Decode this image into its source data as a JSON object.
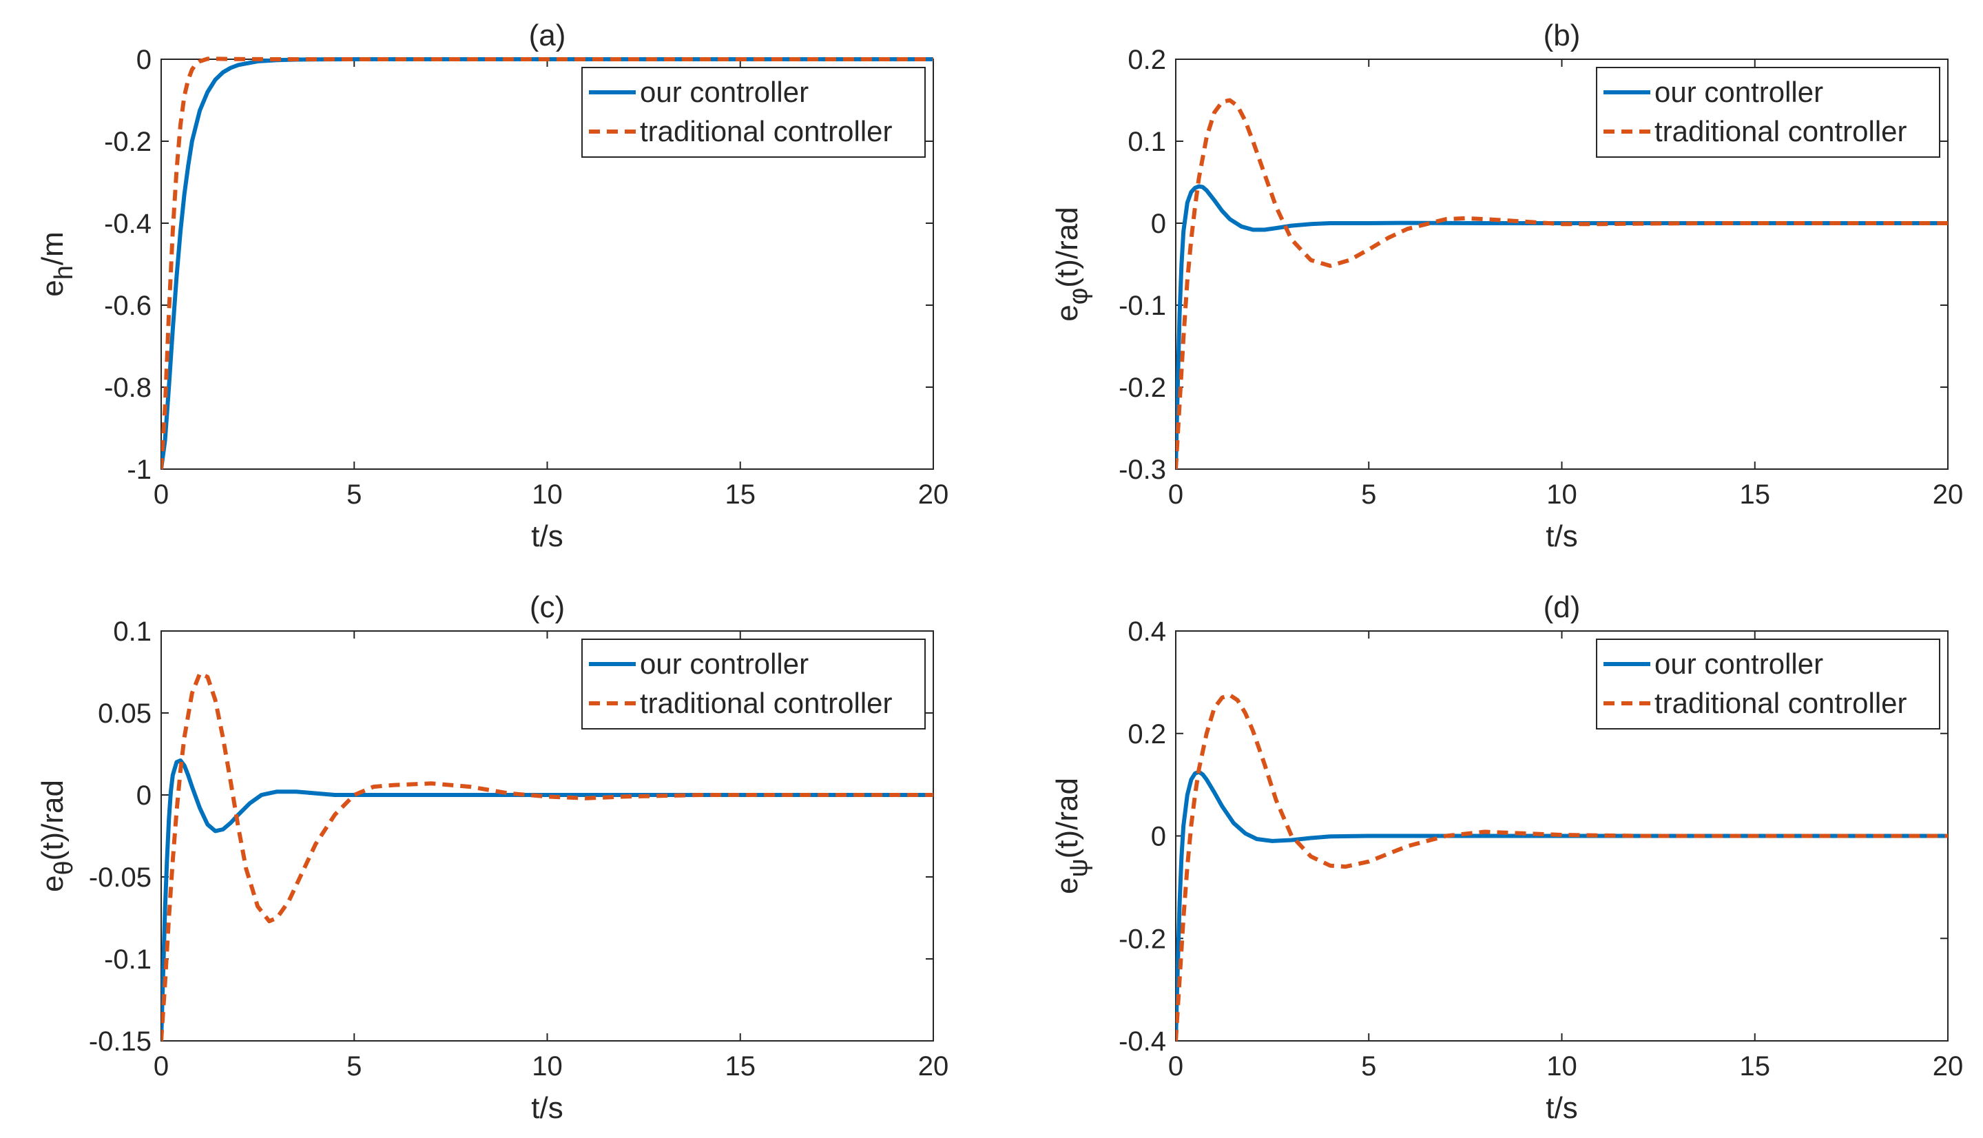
{
  "colors": {
    "ours": "#0072BD",
    "traditional": "#D95319",
    "axis": "#262626"
  },
  "chart_data": [
    {
      "type": "line",
      "title": "(a)",
      "xlabel": "t/s",
      "ylabel": {
        "base": "e",
        "sub": "h",
        "suffix": "/m"
      },
      "xlim": [
        0,
        20
      ],
      "ylim": [
        -1,
        0
      ],
      "xticks": [
        0,
        5,
        10,
        15,
        20
      ],
      "yticks": [
        -1,
        -0.8,
        -0.6,
        -0.4,
        -0.2,
        0
      ],
      "ytick_labels": [
        "-1",
        "-0.8",
        "-0.6",
        "-0.4",
        "-0.2",
        "0"
      ],
      "legend": [
        "our controller",
        "traditional controller"
      ],
      "legend_position": "top-right",
      "series": [
        {
          "name": "our controller",
          "style": "solid",
          "x": [
            0,
            0.1,
            0.2,
            0.3,
            0.4,
            0.5,
            0.6,
            0.7,
            0.8,
            1.0,
            1.2,
            1.4,
            1.6,
            1.8,
            2.0,
            2.5,
            3.0,
            3.5,
            4.0,
            5.0,
            6.0,
            20
          ],
          "y": [
            -1,
            -0.93,
            -0.8,
            -0.66,
            -0.53,
            -0.42,
            -0.33,
            -0.26,
            -0.2,
            -0.125,
            -0.08,
            -0.05,
            -0.032,
            -0.021,
            -0.014,
            -0.005,
            -0.002,
            -0.0008,
            -0.0003,
            0,
            0,
            0
          ]
        },
        {
          "name": "traditional controller",
          "style": "dashed",
          "x": [
            0,
            0.1,
            0.2,
            0.3,
            0.4,
            0.5,
            0.6,
            0.7,
            0.8,
            0.9,
            1.0,
            1.2,
            1.5,
            2.0,
            3.0,
            20
          ],
          "y": [
            -1,
            -0.85,
            -0.62,
            -0.42,
            -0.27,
            -0.16,
            -0.09,
            -0.05,
            -0.025,
            -0.012,
            -0.005,
            0.001,
            0.001,
            0.0003,
            0,
            0
          ]
        }
      ]
    },
    {
      "type": "line",
      "title": "(b)",
      "xlabel": "t/s",
      "ylabel": {
        "base": "e",
        "sub": "φ",
        "suffix": "(t)/rad"
      },
      "xlim": [
        0,
        20
      ],
      "ylim": [
        -0.3,
        0.2
      ],
      "xticks": [
        0,
        5,
        10,
        15,
        20
      ],
      "yticks": [
        -0.3,
        -0.2,
        -0.1,
        0,
        0.1,
        0.2
      ],
      "ytick_labels": [
        "-0.3",
        "-0.2",
        "-0.1",
        "0",
        "0.1",
        "0.2"
      ],
      "legend": [
        "our controller",
        "traditional controller"
      ],
      "legend_position": "top-right",
      "series": [
        {
          "name": "our controller",
          "style": "solid",
          "x": [
            0,
            0.05,
            0.1,
            0.15,
            0.2,
            0.3,
            0.4,
            0.5,
            0.6,
            0.7,
            0.8,
            1.0,
            1.2,
            1.4,
            1.7,
            2.0,
            2.3,
            2.6,
            3.0,
            3.5,
            4.0,
            5.0,
            6.0,
            8.0,
            20
          ],
          "y": [
            -0.3,
            -0.2,
            -0.11,
            -0.05,
            -0.01,
            0.025,
            0.038,
            0.043,
            0.045,
            0.044,
            0.04,
            0.028,
            0.015,
            0.005,
            -0.004,
            -0.008,
            -0.008,
            -0.006,
            -0.003,
            -0.001,
            0,
            0,
            0.0003,
            0,
            0
          ]
        },
        {
          "name": "traditional controller",
          "style": "dashed",
          "x": [
            0,
            0.1,
            0.2,
            0.3,
            0.4,
            0.5,
            0.6,
            0.8,
            1.0,
            1.2,
            1.4,
            1.6,
            1.8,
            2.0,
            2.3,
            2.6,
            3.0,
            3.5,
            4.0,
            4.5,
            5.0,
            5.5,
            6.0,
            7.0,
            7.5,
            8.0,
            9.0,
            10.0,
            11.0,
            12.0,
            14.0,
            20
          ],
          "y": [
            -0.3,
            -0.22,
            -0.14,
            -0.07,
            -0.02,
            0.02,
            0.055,
            0.105,
            0.135,
            0.148,
            0.15,
            0.143,
            0.125,
            0.1,
            0.06,
            0.02,
            -0.02,
            -0.045,
            -0.052,
            -0.045,
            -0.032,
            -0.018,
            -0.007,
            0.005,
            0.006,
            0.005,
            0.002,
            -0.001,
            -0.001,
            -0.0005,
            0,
            0
          ]
        }
      ]
    },
    {
      "type": "line",
      "title": "(c)",
      "xlabel": "t/s",
      "ylabel": {
        "base": "e",
        "sub": "θ",
        "suffix": "(t)/rad"
      },
      "xlim": [
        0,
        20
      ],
      "ylim": [
        -0.15,
        0.1
      ],
      "xticks": [
        0,
        5,
        10,
        15,
        20
      ],
      "yticks": [
        -0.15,
        -0.1,
        -0.05,
        0,
        0.05,
        0.1
      ],
      "ytick_labels": [
        "-0.15",
        "-0.1",
        "-0.05",
        "0",
        "0.05",
        "0.1"
      ],
      "legend": [
        "our controller",
        "traditional controller"
      ],
      "legend_position": "top-right",
      "series": [
        {
          "name": "our controller",
          "style": "solid",
          "x": [
            0,
            0.05,
            0.1,
            0.15,
            0.2,
            0.25,
            0.3,
            0.4,
            0.5,
            0.6,
            0.7,
            0.8,
            1.0,
            1.2,
            1.4,
            1.6,
            1.8,
            2.0,
            2.3,
            2.6,
            3.0,
            3.5,
            4.0,
            4.5,
            5.0,
            6.0,
            7.0,
            20
          ],
          "y": [
            -0.15,
            -0.11,
            -0.07,
            -0.04,
            -0.015,
            0.002,
            0.012,
            0.02,
            0.021,
            0.018,
            0.012,
            0.005,
            -0.008,
            -0.018,
            -0.022,
            -0.021,
            -0.017,
            -0.012,
            -0.005,
            0,
            0.002,
            0.002,
            0.001,
            0,
            0,
            0,
            0,
            0
          ]
        },
        {
          "name": "traditional controller",
          "style": "dashed",
          "x": [
            0,
            0.1,
            0.2,
            0.3,
            0.4,
            0.5,
            0.6,
            0.8,
            1.0,
            1.2,
            1.4,
            1.6,
            1.8,
            2.0,
            2.2,
            2.5,
            2.8,
            3.0,
            3.3,
            3.6,
            4.0,
            4.5,
            5.0,
            5.5,
            6.0,
            7.0,
            8.0,
            9.0,
            10.0,
            11.0,
            12.0,
            14.0,
            20
          ],
          "y": [
            -0.15,
            -0.115,
            -0.075,
            -0.04,
            -0.01,
            0.015,
            0.035,
            0.062,
            0.074,
            0.072,
            0.058,
            0.035,
            0.008,
            -0.02,
            -0.045,
            -0.068,
            -0.077,
            -0.075,
            -0.065,
            -0.05,
            -0.03,
            -0.012,
            0,
            0.005,
            0.006,
            0.007,
            0.005,
            0.001,
            -0.001,
            -0.002,
            -0.001,
            0,
            0
          ]
        }
      ]
    },
    {
      "type": "line",
      "title": "(d)",
      "xlabel": "t/s",
      "ylabel": {
        "base": "e",
        "sub": "ψ",
        "suffix": "(t)/rad"
      },
      "xlim": [
        0,
        20
      ],
      "ylim": [
        -0.4,
        0.4
      ],
      "xticks": [
        0,
        5,
        10,
        15,
        20
      ],
      "yticks": [
        -0.4,
        -0.2,
        0,
        0.2,
        0.4
      ],
      "ytick_labels": [
        "-0.4",
        "-0.2",
        "0",
        "0.2",
        "0.4"
      ],
      "legend": [
        "our controller",
        "traditional controller"
      ],
      "legend_position": "top-right",
      "series": [
        {
          "name": "our controller",
          "style": "solid",
          "x": [
            0,
            0.05,
            0.1,
            0.15,
            0.2,
            0.3,
            0.4,
            0.5,
            0.6,
            0.7,
            0.8,
            1.0,
            1.2,
            1.5,
            1.8,
            2.1,
            2.5,
            3.0,
            3.5,
            4.0,
            5.0,
            6.0,
            20
          ],
          "y": [
            -0.4,
            -0.26,
            -0.13,
            -0.04,
            0.02,
            0.08,
            0.11,
            0.122,
            0.125,
            0.12,
            0.11,
            0.085,
            0.058,
            0.025,
            0.005,
            -0.006,
            -0.01,
            -0.008,
            -0.004,
            -0.001,
            0,
            0,
            0
          ]
        },
        {
          "name": "traditional controller",
          "style": "dashed",
          "x": [
            0,
            0.1,
            0.2,
            0.3,
            0.4,
            0.5,
            0.6,
            0.8,
            1.0,
            1.2,
            1.4,
            1.6,
            1.8,
            2.0,
            2.3,
            2.6,
            3.0,
            3.5,
            4.0,
            4.4,
            5.0,
            5.5,
            6.0,
            7.0,
            8.0,
            9.0,
            10.0,
            12.0,
            20
          ],
          "y": [
            -0.4,
            -0.28,
            -0.16,
            -0.06,
            0.02,
            0.08,
            0.13,
            0.2,
            0.25,
            0.27,
            0.275,
            0.265,
            0.24,
            0.205,
            0.14,
            0.07,
            0,
            -0.04,
            -0.058,
            -0.06,
            -0.05,
            -0.035,
            -0.02,
            0,
            0.008,
            0.005,
            0.002,
            0,
            0
          ]
        }
      ]
    }
  ]
}
